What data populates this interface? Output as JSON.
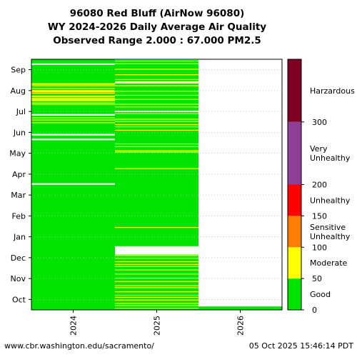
{
  "chart_data": {
    "type": "heatmap",
    "title_lines": [
      "96080 Red Bluff (AirNow 96080)",
      "WY 2024-2026 Daily Average Air Quality",
      "Observed Range 2.000 : 67.000 PM2.5"
    ],
    "x_categories": [
      "2024",
      "2025",
      "2026"
    ],
    "y_ticks": [
      "Oct",
      "Nov",
      "Dec",
      "Jan",
      "Feb",
      "Mar",
      "Apr",
      "May",
      "Jun",
      "Jul",
      "Aug",
      "Sep"
    ],
    "y_range_days": [
      0,
      366
    ],
    "observed_range": [
      2.0,
      67.0
    ],
    "units": "PM2.5",
    "colors": {
      "good": "#00e400",
      "moderate": "#ffff00",
      "missing": "#ffffff"
    },
    "columns": [
      {
        "water_year": "2024",
        "data_start_day": 0,
        "data_end_day": 366,
        "missing_days": [
          183,
          184,
          248,
          249,
          255,
          256,
          284,
          285,
          358,
          359
        ],
        "moderate_days": [
          273,
          277,
          280,
          300,
          302,
          305,
          306,
          307,
          308,
          309,
          311,
          312,
          316,
          318,
          319,
          320,
          323,
          327,
          329,
          330
        ]
      },
      {
        "water_year": "2025",
        "data_start_day": 0,
        "data_end_day": 365,
        "missing_days": [
          81,
          82,
          83,
          84,
          85,
          86,
          87,
          88,
          89,
          90,
          91,
          92,
          289,
          290,
          331,
          332
        ],
        "moderate_days": [
          2,
          6,
          9,
          14,
          18,
          21,
          26,
          32,
          35,
          41,
          46,
          52,
          58,
          63,
          66,
          70,
          75,
          79,
          120,
          206,
          230,
          232,
          238,
          242,
          262,
          267,
          270,
          275,
          278,
          286,
          296,
          300,
          307,
          313,
          319,
          327,
          333,
          336,
          343,
          351,
          359,
          363
        ]
      },
      {
        "water_year": "2026",
        "data_start_day": 0,
        "data_end_day": 5,
        "missing_days": [],
        "moderate_days": []
      }
    ],
    "legend": {
      "categories": [
        {
          "label": "Good",
          "from": 0,
          "to": 50,
          "color": "#00e400"
        },
        {
          "label": "Moderate",
          "from": 50,
          "to": 100,
          "color": "#ffff00"
        },
        {
          "label": "Sensitive\nUnhealthy",
          "from": 100,
          "to": 150,
          "color": "#ff7e00"
        },
        {
          "label": "Unhealthy",
          "from": 150,
          "to": 200,
          "color": "#ff0000"
        },
        {
          "label": "Very\nUnhealthy",
          "from": 200,
          "to": 300,
          "color": "#8f3f97"
        },
        {
          "label": "Harzardous",
          "from": 300,
          "to": 400,
          "color": "#7e0023"
        }
      ],
      "ticks": [
        "0",
        "50",
        "100",
        "150",
        "200",
        "300"
      ],
      "scale_max": 400
    }
  },
  "footer": {
    "url": "www.cbr.washington.edu/sacramento/",
    "timestamp": "05 Oct 2025 15:46:14 PDT"
  }
}
